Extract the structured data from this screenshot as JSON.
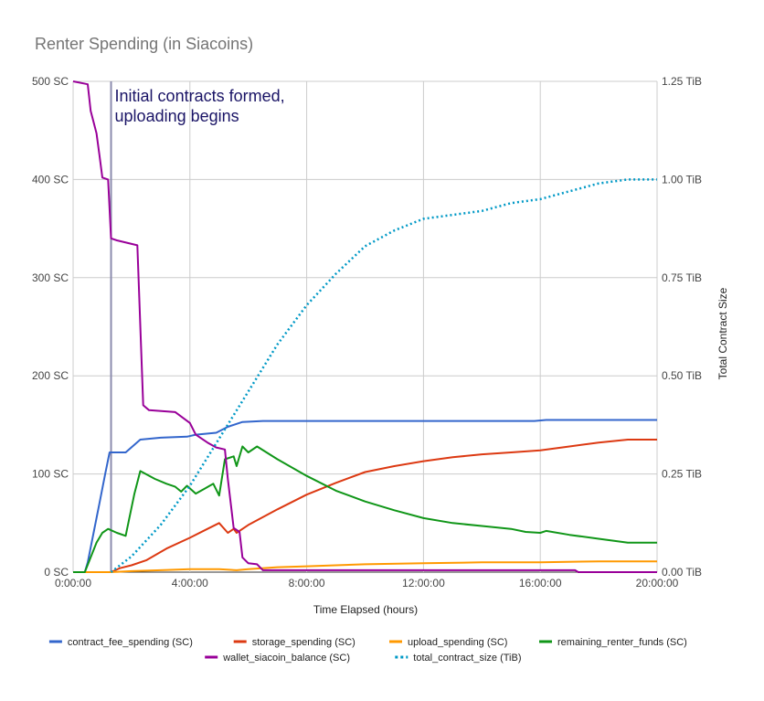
{
  "chart_data": {
    "type": "line",
    "title": "Renter Spending (in Siacoins)",
    "xlabel": "Time Elapsed (hours)",
    "ylabel_left": "",
    "ylabel_right": "Total Contract Size",
    "x_unit": "hours",
    "xlim": [
      0,
      20
    ],
    "ylim_left": [
      0,
      500
    ],
    "ylim_right": [
      0,
      1.25
    ],
    "x_ticks": [
      0,
      4,
      8,
      12,
      16,
      20
    ],
    "x_tick_labels": [
      "0:00:00",
      "4:00:00",
      "8:00:00",
      "12:00:00",
      "16:00:00",
      "20:00:00"
    ],
    "y_left_ticks": [
      0,
      100,
      200,
      300,
      400,
      500
    ],
    "y_left_tick_labels": [
      "0 SC",
      "100 SC",
      "200 SC",
      "300 SC",
      "400 SC",
      "500 SC"
    ],
    "y_right_ticks": [
      0,
      0.25,
      0.5,
      0.75,
      1.0,
      1.25
    ],
    "y_right_tick_labels": [
      "0.00 TiB",
      "0.25 TiB",
      "0.50 TiB",
      "0.75 TiB",
      "1.00 TiB",
      "1.25 TiB"
    ],
    "grid": true,
    "legend_position": "bottom",
    "annotation": {
      "x": 1.3,
      "lines": [
        "Initial contracts formed,",
        "uploading begins"
      ],
      "color": "#1a1466",
      "line_color": "#8c8cae"
    },
    "series": [
      {
        "name": "contract_fee_spending (SC)",
        "color": "#3366cc",
        "axis": "left",
        "dash": false,
        "points": [
          [
            0,
            0
          ],
          [
            0.4,
            0
          ],
          [
            0.5,
            10
          ],
          [
            0.7,
            40
          ],
          [
            0.9,
            70
          ],
          [
            1.1,
            100
          ],
          [
            1.25,
            122
          ],
          [
            1.8,
            122
          ],
          [
            2.3,
            135
          ],
          [
            3.0,
            137
          ],
          [
            3.9,
            138
          ],
          [
            4.2,
            140
          ],
          [
            4.9,
            142
          ],
          [
            5.3,
            148
          ],
          [
            5.8,
            153
          ],
          [
            6.5,
            154
          ],
          [
            10,
            154
          ],
          [
            15.8,
            154
          ],
          [
            16.2,
            155
          ],
          [
            20,
            155
          ]
        ]
      },
      {
        "name": "storage_spending (SC)",
        "color": "#dc3912",
        "axis": "left",
        "dash": false,
        "points": [
          [
            0,
            0
          ],
          [
            1.3,
            0
          ],
          [
            1.6,
            4
          ],
          [
            2.0,
            7
          ],
          [
            2.5,
            12
          ],
          [
            3.2,
            24
          ],
          [
            4.0,
            35
          ],
          [
            4.6,
            44
          ],
          [
            5.0,
            50
          ],
          [
            5.3,
            40
          ],
          [
            5.5,
            44
          ],
          [
            5.6,
            40
          ],
          [
            6.0,
            48
          ],
          [
            7.0,
            64
          ],
          [
            8.0,
            79
          ],
          [
            9.0,
            91
          ],
          [
            10.0,
            102
          ],
          [
            11.0,
            108
          ],
          [
            12.0,
            113
          ],
          [
            13.0,
            117
          ],
          [
            14.0,
            120
          ],
          [
            15.0,
            122
          ],
          [
            16.0,
            124
          ],
          [
            17.0,
            128
          ],
          [
            18.0,
            132
          ],
          [
            19.0,
            135
          ],
          [
            20.0,
            135
          ]
        ]
      },
      {
        "name": "upload_spending (SC)",
        "color": "#ff9900",
        "axis": "left",
        "dash": false,
        "points": [
          [
            0,
            0
          ],
          [
            1.3,
            0
          ],
          [
            2.0,
            1
          ],
          [
            3.0,
            2
          ],
          [
            4.0,
            3
          ],
          [
            5.0,
            3
          ],
          [
            5.6,
            2
          ],
          [
            6.0,
            3
          ],
          [
            7.0,
            5
          ],
          [
            8.0,
            6
          ],
          [
            9.0,
            7
          ],
          [
            10.0,
            8
          ],
          [
            12.0,
            9
          ],
          [
            14.0,
            10
          ],
          [
            16.0,
            10
          ],
          [
            18.0,
            11
          ],
          [
            20.0,
            11
          ]
        ]
      },
      {
        "name": "remaining_renter_funds (SC)",
        "color": "#109618",
        "axis": "left",
        "dash": false,
        "points": [
          [
            0,
            0
          ],
          [
            0.4,
            0
          ],
          [
            0.6,
            15
          ],
          [
            0.8,
            30
          ],
          [
            1.0,
            40
          ],
          [
            1.2,
            44
          ],
          [
            1.5,
            40
          ],
          [
            1.8,
            37
          ],
          [
            2.1,
            80
          ],
          [
            2.3,
            103
          ],
          [
            2.8,
            95
          ],
          [
            3.2,
            90
          ],
          [
            3.5,
            87
          ],
          [
            3.7,
            82
          ],
          [
            3.9,
            88
          ],
          [
            4.2,
            80
          ],
          [
            4.5,
            85
          ],
          [
            4.8,
            90
          ],
          [
            5.0,
            78
          ],
          [
            5.2,
            115
          ],
          [
            5.5,
            118
          ],
          [
            5.6,
            108
          ],
          [
            5.8,
            128
          ],
          [
            6.0,
            122
          ],
          [
            6.3,
            128
          ],
          [
            7.0,
            115
          ],
          [
            8.0,
            98
          ],
          [
            9.0,
            83
          ],
          [
            10.0,
            72
          ],
          [
            11.0,
            63
          ],
          [
            12.0,
            55
          ],
          [
            13.0,
            50
          ],
          [
            14.0,
            47
          ],
          [
            15.0,
            44
          ],
          [
            15.5,
            41
          ],
          [
            16.0,
            40
          ],
          [
            16.2,
            42
          ],
          [
            17.0,
            38
          ],
          [
            18.0,
            34
          ],
          [
            19.0,
            30
          ],
          [
            20.0,
            30
          ]
        ]
      },
      {
        "name": "wallet_siacoin_balance (SC)",
        "color": "#990099",
        "axis": "left",
        "dash": false,
        "points": [
          [
            0,
            500
          ],
          [
            0.5,
            497
          ],
          [
            0.6,
            470
          ],
          [
            0.8,
            447
          ],
          [
            0.9,
            425
          ],
          [
            1.0,
            402
          ],
          [
            1.2,
            400
          ],
          [
            1.3,
            340
          ],
          [
            1.5,
            338
          ],
          [
            2.2,
            333
          ],
          [
            2.4,
            170
          ],
          [
            2.6,
            165
          ],
          [
            3.5,
            163
          ],
          [
            4.0,
            152
          ],
          [
            4.2,
            140
          ],
          [
            4.6,
            132
          ],
          [
            4.9,
            127
          ],
          [
            5.2,
            125
          ],
          [
            5.3,
            95
          ],
          [
            5.5,
            45
          ],
          [
            5.7,
            41
          ],
          [
            5.8,
            15
          ],
          [
            6.0,
            9
          ],
          [
            6.3,
            8
          ],
          [
            6.5,
            2
          ],
          [
            17.2,
            2
          ],
          [
            17.3,
            0
          ],
          [
            20.0,
            0
          ]
        ]
      },
      {
        "name": "total_contract_size (TiB)",
        "color": "#0099c6",
        "axis": "right",
        "dash": true,
        "points": [
          [
            1.3,
            0
          ],
          [
            2.0,
            0.04
          ],
          [
            3.0,
            0.12
          ],
          [
            4.0,
            0.22
          ],
          [
            5.0,
            0.34
          ],
          [
            6.0,
            0.46
          ],
          [
            7.0,
            0.58
          ],
          [
            8.0,
            0.68
          ],
          [
            9.0,
            0.76
          ],
          [
            10.0,
            0.83
          ],
          [
            11.0,
            0.87
          ],
          [
            12.0,
            0.9
          ],
          [
            13.0,
            0.91
          ],
          [
            14.0,
            0.92
          ],
          [
            15.0,
            0.94
          ],
          [
            16.0,
            0.95
          ],
          [
            17.0,
            0.97
          ],
          [
            18.0,
            0.99
          ],
          [
            19.0,
            1.0
          ],
          [
            20.0,
            1.0
          ]
        ]
      }
    ]
  }
}
